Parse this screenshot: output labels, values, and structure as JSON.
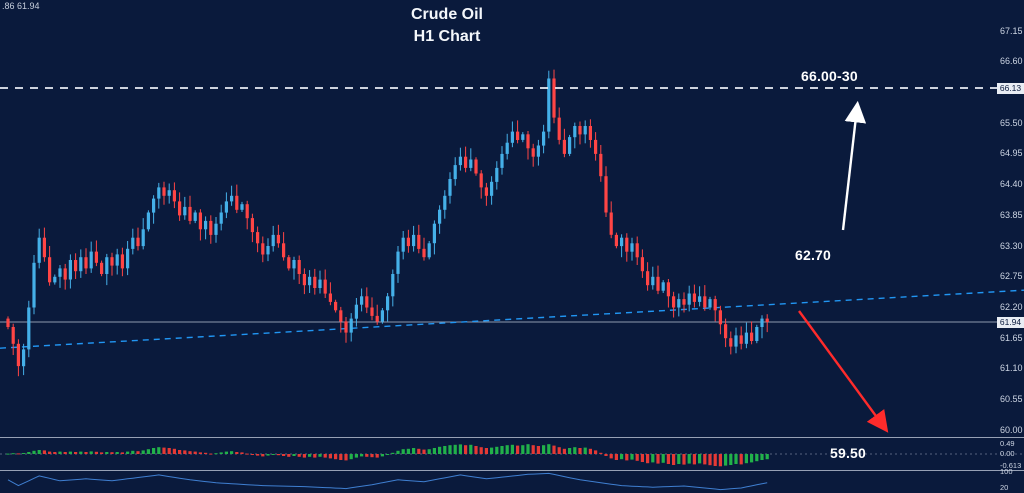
{
  "window": {
    "quote_ticker": ".86 61.94"
  },
  "header": {
    "title_line1": "Crude Oil",
    "title_line2": "H1 Chart"
  },
  "annotations": {
    "resistance_label": "66.00-30",
    "pullback_label": "62.70",
    "support_label": "59.50",
    "arrows": [
      {
        "name": "up-target-arrow",
        "color": "#ffffff",
        "from": [
          843,
          230
        ],
        "to": [
          857,
          108
        ]
      },
      {
        "name": "down-target-arrow",
        "color": "#ff2b2b",
        "from": [
          799,
          311
        ],
        "to": [
          884,
          427
        ]
      }
    ]
  },
  "chart_data": [
    {
      "type": "candlestick",
      "title": "Crude Oil",
      "timeframe": "H1",
      "first_open": 62.0,
      "closes": [
        61.85,
        61.55,
        61.15,
        61.45,
        62.2,
        63.0,
        63.45,
        63.1,
        62.65,
        62.75,
        62.9,
        62.7,
        63.05,
        62.85,
        63.1,
        62.9,
        63.2,
        63.0,
        62.8,
        63.1,
        62.95,
        63.15,
        62.9,
        63.25,
        63.45,
        63.3,
        63.6,
        63.9,
        64.15,
        64.35,
        64.2,
        64.3,
        64.1,
        63.85,
        64.0,
        63.75,
        63.9,
        63.6,
        63.75,
        63.5,
        63.7,
        63.9,
        64.1,
        64.2,
        63.95,
        64.05,
        63.8,
        63.55,
        63.35,
        63.15,
        63.3,
        63.5,
        63.35,
        63.1,
        62.9,
        63.05,
        62.8,
        62.6,
        62.75,
        62.55,
        62.7,
        62.45,
        62.3,
        62.15,
        61.95,
        61.75,
        62.0,
        62.25,
        62.4,
        62.2,
        62.05,
        61.95,
        62.15,
        62.4,
        62.8,
        63.2,
        63.45,
        63.3,
        63.5,
        63.25,
        63.1,
        63.35,
        63.7,
        63.95,
        64.2,
        64.5,
        64.75,
        64.9,
        64.7,
        64.85,
        64.6,
        64.35,
        64.2,
        64.45,
        64.7,
        64.95,
        65.15,
        65.35,
        65.2,
        65.3,
        65.05,
        64.9,
        65.1,
        65.35,
        66.3,
        65.6,
        65.2,
        64.95,
        65.25,
        65.45,
        65.3,
        65.45,
        65.2,
        64.95,
        64.55,
        63.9,
        63.5,
        63.3,
        63.45,
        63.2,
        63.35,
        63.1,
        62.85,
        62.6,
        62.75,
        62.5,
        62.65,
        62.4,
        62.2,
        62.35,
        62.25,
        62.45,
        62.3,
        62.4,
        62.2,
        62.35,
        62.15,
        61.9,
        61.65,
        61.5,
        61.7,
        61.55,
        61.75,
        61.6,
        61.85,
        62.0,
        61.94
      ],
      "colors": {
        "up": "#45b0e8",
        "down": "#ff4545"
      },
      "levels": {
        "resistance": 66.13,
        "resistance_tag": "66.13",
        "current": 61.94,
        "current_tag": "61.94",
        "resistance_zone": "66.00-30",
        "pullback": 62.7,
        "support_target": 59.5
      },
      "trendline": {
        "start_price": 61.47,
        "end_price": 62.51,
        "color": "#2196f3",
        "style": "dashed"
      },
      "y_axis_ticks": [
        67.15,
        66.6,
        65.5,
        64.95,
        64.4,
        63.85,
        63.3,
        62.75,
        62.2,
        61.65,
        61.1,
        60.55,
        60.0
      ],
      "ylim": [
        59.88,
        67.7
      ]
    },
    {
      "type": "bar",
      "name": "momentum-histogram",
      "values": [
        0.02,
        0.04,
        0.03,
        0.05,
        0.1,
        0.16,
        0.2,
        0.18,
        0.12,
        0.1,
        0.12,
        0.1,
        0.12,
        0.1,
        0.12,
        0.1,
        0.13,
        0.11,
        0.08,
        0.1,
        0.09,
        0.1,
        0.08,
        0.12,
        0.16,
        0.14,
        0.18,
        0.24,
        0.3,
        0.34,
        0.32,
        0.3,
        0.26,
        0.2,
        0.18,
        0.14,
        0.12,
        0.08,
        0.06,
        0.02,
        0.04,
        0.08,
        0.12,
        0.14,
        0.1,
        0.08,
        0.02,
        -0.04,
        -0.08,
        -0.12,
        -0.08,
        -0.04,
        -0.06,
        -0.1,
        -0.14,
        -0.1,
        -0.14,
        -0.18,
        -0.14,
        -0.18,
        -0.14,
        -0.18,
        -0.22,
        -0.26,
        -0.3,
        -0.32,
        -0.26,
        -0.18,
        -0.12,
        -0.14,
        -0.16,
        -0.18,
        -0.12,
        -0.04,
        0.06,
        0.16,
        0.24,
        0.26,
        0.3,
        0.26,
        0.22,
        0.24,
        0.3,
        0.36,
        0.4,
        0.44,
        0.46,
        0.48,
        0.44,
        0.46,
        0.4,
        0.34,
        0.3,
        0.32,
        0.36,
        0.4,
        0.44,
        0.46,
        0.42,
        0.44,
        0.49,
        0.44,
        0.4,
        0.44,
        0.49,
        0.42,
        0.34,
        0.26,
        0.3,
        0.34,
        0.3,
        0.32,
        0.26,
        0.18,
        0.06,
        -0.1,
        -0.22,
        -0.3,
        -0.26,
        -0.32,
        -0.28,
        -0.34,
        -0.4,
        -0.46,
        -0.42,
        -0.48,
        -0.44,
        -0.5,
        -0.55,
        -0.5,
        -0.53,
        -0.48,
        -0.52,
        -0.47,
        -0.52,
        -0.56,
        -0.6,
        -0.613,
        -0.58,
        -0.55,
        -0.5,
        -0.52,
        -0.46,
        -0.42,
        -0.36,
        -0.3,
        -0.26
      ],
      "colors": {
        "rising": "#21b14a",
        "falling": "#e53935"
      },
      "axis_labels": [
        {
          "text": "0.49",
          "value": 0.49
        },
        {
          "text": "0.00",
          "value": 0.0
        },
        {
          "text": "-0.613",
          "value": -0.613
        }
      ],
      "ylim": [
        -0.75,
        0.75
      ]
    },
    {
      "type": "line",
      "name": "lower-oscillator",
      "points": [
        [
          0,
          60
        ],
        [
          2,
          30
        ],
        [
          6,
          80
        ],
        [
          10,
          55
        ],
        [
          15,
          65
        ],
        [
          20,
          55
        ],
        [
          29,
          85
        ],
        [
          35,
          60
        ],
        [
          40,
          45
        ],
        [
          49,
          30
        ],
        [
          57,
          25
        ],
        [
          65,
          15
        ],
        [
          70,
          35
        ],
        [
          75,
          60
        ],
        [
          80,
          50
        ],
        [
          87,
          85
        ],
        [
          92,
          65
        ],
        [
          100,
          88
        ],
        [
          104,
          93
        ],
        [
          110,
          60
        ],
        [
          118,
          30
        ],
        [
          124,
          22
        ],
        [
          130,
          28
        ],
        [
          137,
          10
        ],
        [
          141,
          18
        ],
        [
          146,
          45
        ]
      ],
      "color": "#3f7fd1",
      "axis_labels": [
        {
          "text": "100",
          "value": 100
        },
        {
          "text": "20",
          "value": 20
        }
      ],
      "ylim": [
        0,
        100
      ]
    }
  ]
}
